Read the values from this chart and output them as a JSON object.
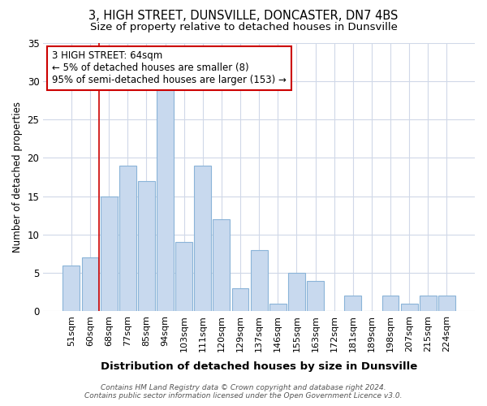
{
  "title": "3, HIGH STREET, DUNSVILLE, DONCASTER, DN7 4BS",
  "subtitle": "Size of property relative to detached houses in Dunsville",
  "xlabel": "Distribution of detached houses by size in Dunsville",
  "ylabel": "Number of detached properties",
  "categories": [
    "51sqm",
    "60sqm",
    "68sqm",
    "77sqm",
    "85sqm",
    "94sqm",
    "103sqm",
    "111sqm",
    "120sqm",
    "129sqm",
    "137sqm",
    "146sqm",
    "155sqm",
    "163sqm",
    "172sqm",
    "181sqm",
    "189sqm",
    "198sqm",
    "207sqm",
    "215sqm",
    "224sqm"
  ],
  "values": [
    6,
    7,
    15,
    19,
    17,
    29,
    9,
    19,
    12,
    3,
    8,
    1,
    5,
    4,
    0,
    2,
    0,
    2,
    1,
    2,
    2
  ],
  "bar_color": "#c8d9ee",
  "bar_edgecolor": "#8ab4d8",
  "background_color": "#ffffff",
  "grid_color": "#d0d8e8",
  "red_line_x": 1.48,
  "annotation_text": "3 HIGH STREET: 64sqm\n← 5% of detached houses are smaller (8)\n95% of semi-detached houses are larger (153) →",
  "annotation_box_color": "#ffffff",
  "annotation_box_edgecolor": "#cc0000",
  "ylim": [
    0,
    35
  ],
  "yticks": [
    0,
    5,
    10,
    15,
    20,
    25,
    30,
    35
  ],
  "footer": "Contains HM Land Registry data © Crown copyright and database right 2024.\nContains public sector information licensed under the Open Government Licence v3.0.",
  "title_fontsize": 10.5,
  "subtitle_fontsize": 9.5,
  "ylabel_fontsize": 8.5,
  "xlabel_fontsize": 9.5,
  "tick_fontsize": 8,
  "annotation_fontsize": 8.5,
  "footer_fontsize": 6.5
}
